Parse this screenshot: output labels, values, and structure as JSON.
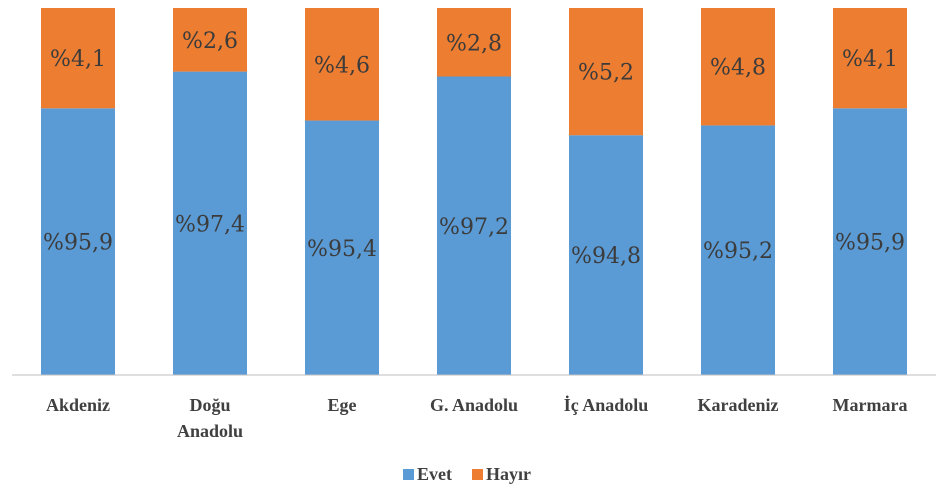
{
  "chart_data": {
    "type": "bar",
    "stacked": true,
    "percent_stacked": true,
    "categories": [
      [
        "Akdeniz"
      ],
      [
        "Doğu",
        "Anadolu"
      ],
      [
        "Ege"
      ],
      [
        "G. Anadolu"
      ],
      [
        "İç Anadolu"
      ],
      [
        "Karadeniz"
      ],
      [
        "Marmara"
      ]
    ],
    "series": [
      {
        "name": "Evet",
        "color": "#5B9BD5",
        "values": [
          95.9,
          97.4,
          95.4,
          97.2,
          94.8,
          95.2,
          95.9
        ],
        "labels": [
          "%95,9",
          "%97,4",
          "%95,4",
          "%97,2",
          "%94,8",
          "%95,2",
          "%95,9"
        ]
      },
      {
        "name": "Hayır",
        "color": "#ED7D31",
        "values": [
          4.1,
          2.6,
          4.6,
          2.8,
          5.2,
          4.8,
          4.1
        ],
        "labels": [
          "%4,1",
          "%2,6",
          "%4,6",
          "%2,8",
          "%5,2",
          "%4,8",
          "%4,1"
        ]
      }
    ],
    "title": "",
    "xlabel": "",
    "ylabel": "",
    "grid": false,
    "legend_position": "bottom"
  }
}
